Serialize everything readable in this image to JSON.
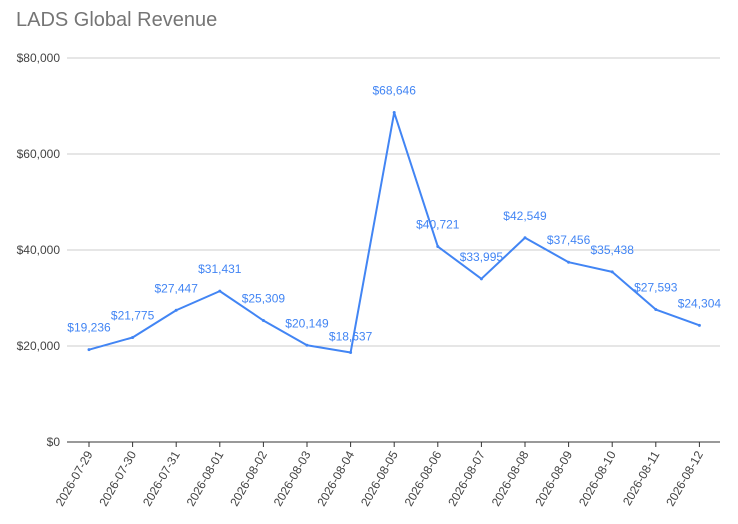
{
  "chart_data": {
    "type": "line",
    "title": "LADS Global Revenue",
    "xlabel": "",
    "ylabel": "",
    "ylim": [
      0,
      80000
    ],
    "yticks": [
      0,
      20000,
      40000,
      60000,
      80000
    ],
    "ytick_labels": [
      "$0",
      "$20,000",
      "$40,000",
      "$60,000",
      "$80,000"
    ],
    "grid": true,
    "legend": "none",
    "line_color": "#4285f4",
    "x": [
      "2026-07-29",
      "2026-07-30",
      "2026-07-31",
      "2026-08-01",
      "2026-08-02",
      "2026-08-03",
      "2026-08-04",
      "2026-08-05",
      "2026-08-06",
      "2026-08-07",
      "2026-08-08",
      "2026-08-09",
      "2026-08-10",
      "2026-08-11",
      "2026-08-12"
    ],
    "values": [
      19236,
      21775,
      27447,
      31431,
      25309,
      20149,
      18637,
      68646,
      40721,
      33995,
      42549,
      37456,
      35438,
      27593,
      24304
    ],
    "data_labels": [
      "$19,236",
      "$21,775",
      "$27,447",
      "$31,431",
      "$25,309",
      "$20,149",
      "$18,637",
      "$68,646",
      "$40,721",
      "$33,995",
      "$42,549",
      "$37,456",
      "$35,438",
      "$27,593",
      "$24,304"
    ]
  }
}
